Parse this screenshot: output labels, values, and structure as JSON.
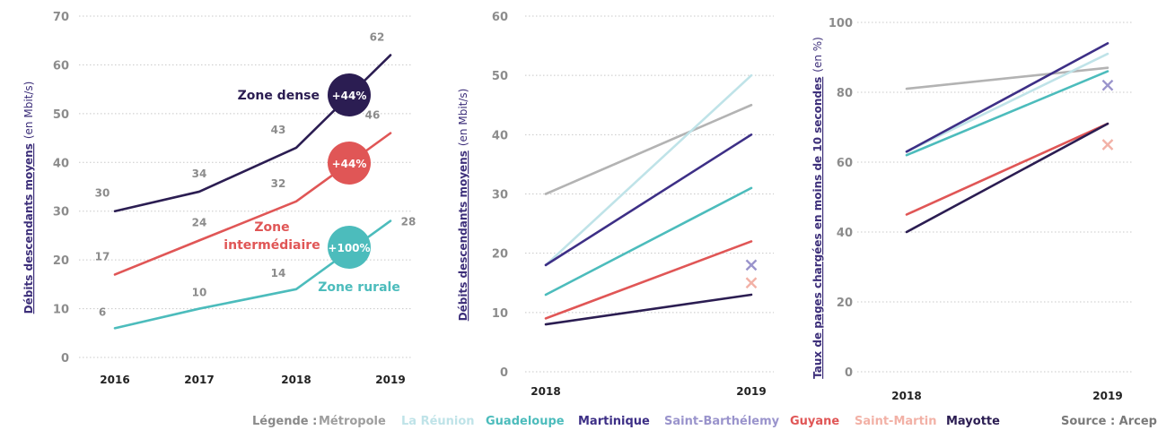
{
  "colors": {
    "axis_text": "#8c8c8c",
    "axis_title": "#3d2f7a",
    "grid": "#c8c8c8",
    "value_label": "#8c8c8c",
    "legend_prefix": "#8a8a8a",
    "source": "#7a7a7a"
  },
  "chart_data": [
    {
      "type": "line",
      "ylabel_bold": "Débits descendants moyens",
      "ylabel_unit": "(en Mbit/s)",
      "x": [
        "2016",
        "2017",
        "2018",
        "2019"
      ],
      "ylim": [
        0,
        70
      ],
      "yticks": [
        "0",
        "10",
        "20",
        "30",
        "40",
        "50",
        "60",
        "70"
      ],
      "grid": true,
      "series": [
        {
          "name": "Zone dense",
          "color": "#2b1d52",
          "values": [
            30,
            34,
            43,
            62
          ],
          "labels": [
            "30",
            "34",
            "43",
            "62"
          ],
          "badge": "+44%"
        },
        {
          "name": "Zone intermédiaire",
          "color": "#e05656",
          "values": [
            17,
            24,
            32,
            46
          ],
          "labels": [
            "17",
            "24",
            "32",
            "46"
          ],
          "badge": "+44%"
        },
        {
          "name": "Zone rurale",
          "color": "#4cbcbc",
          "values": [
            6,
            10,
            14,
            28
          ],
          "labels": [
            "6",
            "10",
            "14",
            "28"
          ],
          "badge": "+100%"
        }
      ]
    },
    {
      "type": "line",
      "ylabel_bold": "Débits descendants moyens",
      "ylabel_unit": "(en Mbit/s)",
      "x": [
        "2018",
        "2019"
      ],
      "ylim": [
        0,
        60
      ],
      "yticks": [
        "0",
        "10",
        "20",
        "30",
        "40",
        "50",
        "60"
      ],
      "grid": true,
      "series": [
        {
          "name": "Métropole",
          "color": "#b3b3b3",
          "values": [
            30,
            45
          ]
        },
        {
          "name": "La Réunion",
          "color": "#bfe3e8",
          "values": [
            18,
            50
          ]
        },
        {
          "name": "Guadeloupe",
          "color": "#4cbcbc",
          "values": [
            13,
            31
          ]
        },
        {
          "name": "Martinique",
          "color": "#3d2f86",
          "values": [
            18,
            40
          ]
        },
        {
          "name": "Guyane",
          "color": "#e05656",
          "values": [
            9,
            22
          ]
        },
        {
          "name": "Mayotte",
          "color": "#2b1d52",
          "values": [
            8,
            13
          ]
        }
      ],
      "markers": [
        {
          "name": "Saint-Barthélemy",
          "color": "#9a94cc",
          "x": "2019",
          "y": 18
        },
        {
          "name": "Saint-Martin",
          "color": "#f2b1a6",
          "x": "2019",
          "y": 15
        }
      ]
    },
    {
      "type": "line",
      "ylabel_bold": "Taux de pages chargées en moins de 10 secondes",
      "ylabel_unit": "(en %)",
      "x": [
        "2018",
        "2019"
      ],
      "ylim": [
        0,
        100
      ],
      "yticks": [
        "0",
        "20",
        "40",
        "60",
        "80",
        "100"
      ],
      "grid": true,
      "series": [
        {
          "name": "Métropole",
          "color": "#b3b3b3",
          "values": [
            81,
            87
          ]
        },
        {
          "name": "La Réunion",
          "color": "#bfe3e8",
          "values": [
            63,
            91
          ]
        },
        {
          "name": "Guadeloupe",
          "color": "#4cbcbc",
          "values": [
            62,
            86
          ]
        },
        {
          "name": "Martinique",
          "color": "#3d2f86",
          "values": [
            63,
            94
          ]
        },
        {
          "name": "Guyane",
          "color": "#e05656",
          "values": [
            45,
            71
          ]
        },
        {
          "name": "Mayotte",
          "color": "#2b1d52",
          "values": [
            40,
            71
          ]
        }
      ],
      "markers": [
        {
          "name": "Saint-Barthélemy",
          "color": "#9a94cc",
          "x": "2019",
          "y": 82
        },
        {
          "name": "Saint-Martin",
          "color": "#f2b1a6",
          "x": "2019",
          "y": 65
        }
      ]
    }
  ],
  "legend": {
    "prefix": "Légende :",
    "items": [
      {
        "label": "Métropole",
        "color": "#9e9e9e"
      },
      {
        "label": "La Réunion",
        "color": "#bfe3e8"
      },
      {
        "label": "Guadeloupe",
        "color": "#4cbcbc"
      },
      {
        "label": "Martinique",
        "color": "#3d2f86"
      },
      {
        "label": "Saint-Barthélemy",
        "color": "#9a94cc"
      },
      {
        "label": "Guyane",
        "color": "#e05656"
      },
      {
        "label": "Saint-Martin",
        "color": "#f2b1a6"
      },
      {
        "label": "Mayotte",
        "color": "#2b1d52"
      }
    ],
    "source": "Source : Arcep"
  }
}
